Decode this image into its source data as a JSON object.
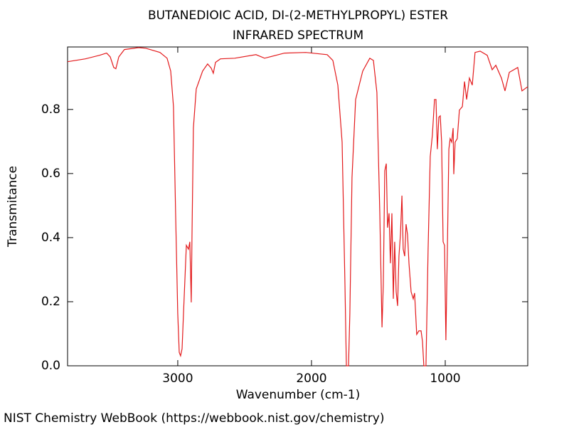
{
  "chart_data": {
    "type": "line",
    "title": "BUTANEDIOIC ACID, DI-(2-METHYLPROPYL) ESTER",
    "subtitle": "INFRARED SPECTRUM",
    "x_label": "Wavenumber (cm-1)",
    "y_label": "Transmitance",
    "credit": "NIST Chemistry WebBook (https://webbook.nist.gov/chemistry)",
    "color": "#e31a1c",
    "xlim": [
      3824,
      383
    ],
    "ylim": [
      0,
      0.995
    ],
    "xticks": [
      3000,
      2000,
      1000
    ],
    "yticks": [
      {
        "value": 0,
        "label": "0.0"
      },
      0.2,
      0.4,
      0.6,
      0.8
    ],
    "x": [
      3824,
      3691,
      3585,
      3532,
      3505,
      3479,
      3463,
      3441,
      3399,
      3293,
      3239,
      3133,
      3080,
      3053,
      3032,
      3016,
      3000,
      2989,
      2979,
      2968,
      2957,
      2936,
      2920,
      2910,
      2899,
      2894,
      2883,
      2862,
      2814,
      2777,
      2750,
      2734,
      2718,
      2681,
      2574,
      2415,
      2351,
      2202,
      2043,
      1883,
      1840,
      1803,
      1771,
      1750,
      1739,
      1723,
      1713,
      1697,
      1670,
      1617,
      1564,
      1537,
      1511,
      1489,
      1473,
      1463,
      1452,
      1441,
      1431,
      1420,
      1410,
      1399,
      1388,
      1378,
      1367,
      1356,
      1346,
      1335,
      1324,
      1314,
      1303,
      1293,
      1282,
      1271,
      1255,
      1239,
      1229,
      1213,
      1197,
      1181,
      1170,
      1160,
      1144,
      1128,
      1112,
      1096,
      1080,
      1069,
      1059,
      1048,
      1037,
      1027,
      1016,
      1005,
      995,
      984,
      973,
      963,
      952,
      941,
      936,
      926,
      910,
      894,
      872,
      856,
      840,
      819,
      798,
      777,
      739,
      686,
      649,
      622,
      580,
      553,
      521,
      458,
      426,
      383
    ],
    "values": [
      0.949,
      0.958,
      0.969,
      0.976,
      0.964,
      0.931,
      0.927,
      0.964,
      0.987,
      0.993,
      0.991,
      0.978,
      0.96,
      0.92,
      0.809,
      0.476,
      0.164,
      0.042,
      0.031,
      0.053,
      0.164,
      0.376,
      0.364,
      0.387,
      0.198,
      0.398,
      0.742,
      0.864,
      0.92,
      0.942,
      0.929,
      0.913,
      0.947,
      0.958,
      0.96,
      0.971,
      0.96,
      0.976,
      0.978,
      0.971,
      0.953,
      0.876,
      0.698,
      0.253,
      0.0,
      0.0,
      0.164,
      0.587,
      0.831,
      0.92,
      0.96,
      0.953,
      0.853,
      0.476,
      0.12,
      0.253,
      0.609,
      0.631,
      0.431,
      0.476,
      0.32,
      0.476,
      0.209,
      0.387,
      0.231,
      0.187,
      0.342,
      0.409,
      0.531,
      0.364,
      0.342,
      0.442,
      0.409,
      0.32,
      0.231,
      0.209,
      0.227,
      0.098,
      0.109,
      0.109,
      0.076,
      0.0,
      0.0,
      0.364,
      0.653,
      0.72,
      0.831,
      0.831,
      0.676,
      0.776,
      0.78,
      0.698,
      0.387,
      0.376,
      0.08,
      0.364,
      0.676,
      0.709,
      0.698,
      0.742,
      0.598,
      0.698,
      0.709,
      0.798,
      0.809,
      0.887,
      0.831,
      0.898,
      0.876,
      0.978,
      0.982,
      0.969,
      0.924,
      0.938,
      0.898,
      0.858,
      0.916,
      0.931,
      0.858,
      0.871
    ]
  }
}
